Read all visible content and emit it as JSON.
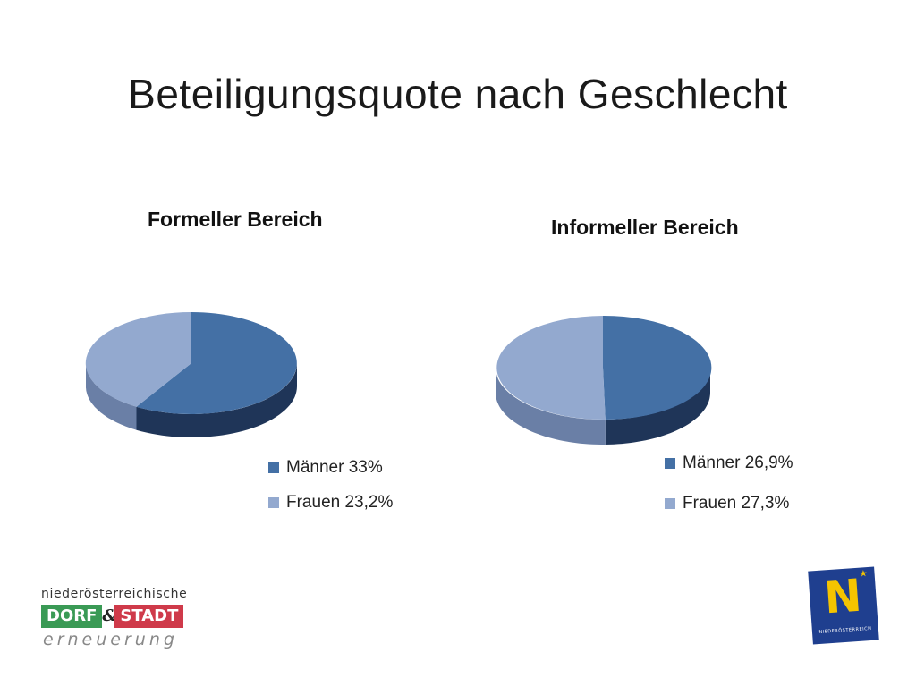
{
  "slide": {
    "title": "Beteiligungsquote  nach Geschlecht"
  },
  "chart_data": [
    {
      "type": "pie",
      "title": "Formeller Bereich",
      "categories": [
        "Männer 33%",
        "Frauen 23,2%"
      ],
      "values": [
        33,
        23.2
      ],
      "colors": [
        "#4470a5",
        "#93a9cf"
      ],
      "legend_position": "bottom-right"
    },
    {
      "type": "pie",
      "title": "Informeller Bereich",
      "categories": [
        "Männer 26,9%",
        "Frauen 27,3%"
      ],
      "values": [
        26.9,
        27.3
      ],
      "colors": [
        "#4470a5",
        "#93a9cf"
      ],
      "legend_position": "bottom-right"
    }
  ],
  "logos": {
    "left": {
      "top": "niederösterreichische",
      "word1": "DORF",
      "amp": "&",
      "word2": "STADT",
      "bottom": "erneuerung"
    },
    "right": {
      "letter": "N",
      "sub": "NIEDERÖSTERREICH"
    }
  }
}
